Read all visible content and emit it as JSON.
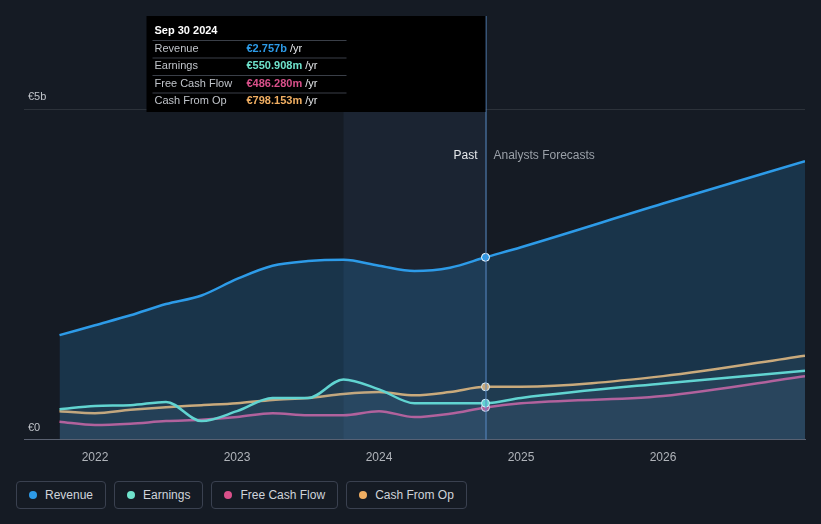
{
  "chart_data": {
    "type": "line",
    "x": [
      2021.75,
      2022,
      2022.25,
      2022.5,
      2022.75,
      2023,
      2023.25,
      2023.5,
      2023.75,
      2024,
      2024.25,
      2024.5,
      2024.75,
      2025,
      2026,
      2027
    ],
    "series": [
      {
        "name": "Revenue",
        "color": "#2d9be8",
        "values": [
          1.58,
          1.73,
          1.88,
          2.05,
          2.18,
          2.43,
          2.63,
          2.7,
          2.72,
          2.63,
          2.55,
          2.6,
          2.757,
          2.91,
          3.57,
          4.21
        ]
      },
      {
        "name": "Earnings",
        "color": "#6fe3cc",
        "values": [
          0.46,
          0.51,
          0.52,
          0.57,
          0.28,
          0.43,
          0.63,
          0.63,
          0.91,
          0.76,
          0.55,
          0.55,
          0.550908,
          0.63,
          0.85,
          1.04
        ]
      },
      {
        "name": "Free Cash Flow",
        "color": "#d9508a",
        "values": [
          0.27,
          0.22,
          0.24,
          0.28,
          0.3,
          0.34,
          0.4,
          0.37,
          0.37,
          0.43,
          0.34,
          0.39,
          0.48628,
          0.55,
          0.66,
          0.96
        ]
      },
      {
        "name": "Cash From Op",
        "color": "#f0ae62",
        "values": [
          0.43,
          0.4,
          0.45,
          0.49,
          0.52,
          0.55,
          0.6,
          0.63,
          0.69,
          0.72,
          0.67,
          0.72,
          0.798153,
          0.8,
          0.96,
          1.27
        ]
      }
    ],
    "xlim": [
      2021.5,
      2027
    ],
    "xticks": [
      2022,
      2023,
      2024,
      2025,
      2026
    ],
    "ylim": [
      0,
      5
    ],
    "yticks": [
      {
        "value": 0,
        "label": "€0"
      },
      {
        "value": 5,
        "label": "€5b"
      }
    ],
    "grid": true,
    "legend": "bottom",
    "annotations": [
      {
        "text": "Past",
        "x": 2024.75,
        "side": "left"
      },
      {
        "text": "Analysts Forecasts",
        "x": 2024.75,
        "side": "right"
      }
    ],
    "highlight": {
      "x0": 2023.75,
      "x1": 2024.75
    },
    "tooltip": {
      "title": "Sep 30 2024",
      "x": 2024.75,
      "suffix": "/yr",
      "rows": [
        {
          "name": "Revenue",
          "value": 2.757,
          "label": "€2.757b"
        },
        {
          "name": "Earnings",
          "value": 0.550908,
          "label": "€550.908m"
        },
        {
          "name": "Free Cash Flow",
          "value": 0.48628,
          "label": "€486.280m"
        },
        {
          "name": "Cash From Op",
          "value": 0.798153,
          "label": "€798.153m"
        }
      ]
    }
  }
}
